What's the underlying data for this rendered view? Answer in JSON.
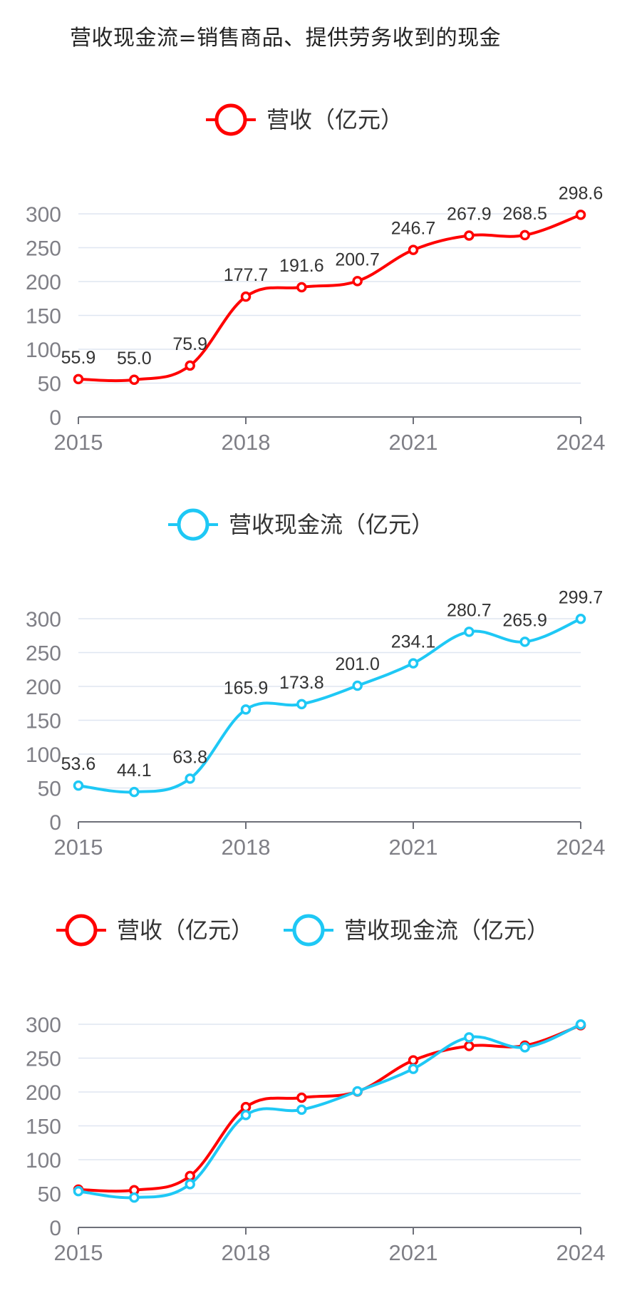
{
  "title": "营收现金流=销售商品、提供劳务收到的现金",
  "colors": {
    "revenue": "#ff0000",
    "cashflow": "#1ec8f5",
    "grid": "#dfe6f1",
    "axis": "#6e7079"
  },
  "chart_data": [
    {
      "type": "line",
      "x": [
        2015,
        2016,
        2017,
        2018,
        2019,
        2020,
        2021,
        2022,
        2023,
        2024
      ],
      "x_tick_labels": [
        "2015",
        "2018",
        "2021",
        "2024"
      ],
      "y_ticks": [
        "0",
        "50",
        "100",
        "150",
        "200",
        "250",
        "300"
      ],
      "ylim": [
        0,
        300
      ],
      "legend": [
        "营收（亿元）"
      ],
      "series": [
        {
          "name": "营收（亿元）",
          "color": "#ff0000",
          "values": [
            55.9,
            55.0,
            75.9,
            177.7,
            191.6,
            200.7,
            246.7,
            267.9,
            268.5,
            298.6
          ],
          "labels": [
            "55.9",
            "55.0",
            "75.9",
            "177.7",
            "191.6",
            "200.7",
            "246.7",
            "267.9",
            "268.5",
            "298.6"
          ]
        }
      ]
    },
    {
      "type": "line",
      "x": [
        2015,
        2016,
        2017,
        2018,
        2019,
        2020,
        2021,
        2022,
        2023,
        2024
      ],
      "x_tick_labels": [
        "2015",
        "2018",
        "2021",
        "2024"
      ],
      "y_ticks": [
        "0",
        "50",
        "100",
        "150",
        "200",
        "250",
        "300"
      ],
      "ylim": [
        0,
        300
      ],
      "legend": [
        "营收现金流（亿元）"
      ],
      "series": [
        {
          "name": "营收现金流（亿元）",
          "color": "#1ec8f5",
          "values": [
            53.6,
            44.1,
            63.8,
            165.9,
            173.8,
            201.0,
            234.1,
            280.7,
            265.9,
            299.7
          ],
          "labels": [
            "53.6",
            "44.1",
            "63.8",
            "165.9",
            "173.8",
            "201.0",
            "234.1",
            "280.7",
            "265.9",
            "299.7"
          ]
        }
      ]
    },
    {
      "type": "line",
      "x": [
        2015,
        2016,
        2017,
        2018,
        2019,
        2020,
        2021,
        2022,
        2023,
        2024
      ],
      "x_tick_labels": [
        "2015",
        "2018",
        "2021",
        "2024"
      ],
      "y_ticks": [
        "0",
        "50",
        "100",
        "150",
        "200",
        "250",
        "300"
      ],
      "ylim": [
        0,
        300
      ],
      "legend": [
        "营收（亿元）",
        "营收现金流（亿元）"
      ],
      "series": [
        {
          "name": "营收（亿元）",
          "color": "#ff0000",
          "values": [
            55.9,
            55.0,
            75.9,
            177.7,
            191.6,
            200.7,
            246.7,
            267.9,
            268.5,
            298.6
          ]
        },
        {
          "name": "营收现金流（亿元）",
          "color": "#1ec8f5",
          "values": [
            53.6,
            44.1,
            63.8,
            165.9,
            173.8,
            201.0,
            234.1,
            280.7,
            265.9,
            299.7
          ]
        }
      ]
    }
  ]
}
